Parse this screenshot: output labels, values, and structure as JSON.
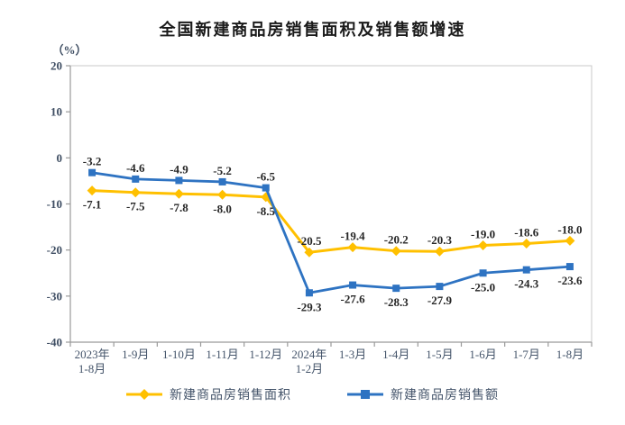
{
  "chart_data": {
    "type": "line",
    "title": "全国新建商品房销售面积及销售额增速",
    "unit_label": "（%）",
    "categories": [
      [
        "2023年",
        "1-8月"
      ],
      [
        "1-9月"
      ],
      [
        "1-10月"
      ],
      [
        "1-11月"
      ],
      [
        "1-12月"
      ],
      [
        "2024年",
        "1-2月"
      ],
      [
        "1-3月"
      ],
      [
        "1-4月"
      ],
      [
        "1-5月"
      ],
      [
        "1-6月"
      ],
      [
        "1-7月"
      ],
      [
        "1-8月"
      ]
    ],
    "ylim": [
      -40,
      20
    ],
    "ytick_step": 10,
    "grid": false,
    "legend_position": "bottom",
    "series": [
      {
        "name": "新建商品房销售面积",
        "marker": "diamond",
        "color": "#FFC000",
        "values": [
          -7.1,
          -7.5,
          -7.8,
          -8.0,
          -8.5,
          -20.5,
          -19.4,
          -20.2,
          -20.3,
          -19.0,
          -18.6,
          -18.0
        ],
        "label_positions": [
          "below",
          "below",
          "below",
          "below",
          "below",
          "above",
          "above",
          "above",
          "above",
          "above",
          "above",
          "above"
        ]
      },
      {
        "name": "新建商品房销售额",
        "marker": "square",
        "color": "#2E73C2",
        "values": [
          -3.2,
          -4.6,
          -4.9,
          -5.2,
          -6.5,
          -29.3,
          -27.6,
          -28.3,
          -27.9,
          -25.0,
          -24.3,
          -23.6
        ],
        "label_positions": [
          "above",
          "above",
          "above",
          "above",
          "above",
          "below",
          "below",
          "below",
          "below",
          "below",
          "below",
          "below"
        ]
      }
    ],
    "colors": {
      "axis_line": "#9a9a9a",
      "plot_border": "#c9c9c9",
      "axis_text": "#44546a",
      "data_label": "#262626"
    }
  }
}
